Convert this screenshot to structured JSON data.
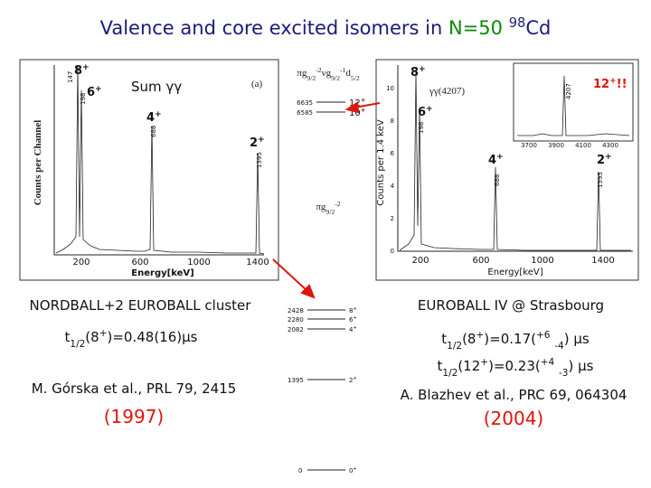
{
  "title": [
    {
      "text": "Valence and core excited isomers in "
    },
    {
      "text": "N=50",
      "color": "#0a8a0a"
    },
    {
      "text": " "
    },
    {
      "text": "98",
      "pos": "sup"
    },
    {
      "text": "Cd"
    }
  ],
  "left_spectrum": {
    "peak_8": [
      {
        "text": "8"
      },
      {
        "text": "+",
        "pos": "sup"
      }
    ],
    "peak_6": [
      {
        "text": "6"
      },
      {
        "text": "+",
        "pos": "sup"
      }
    ],
    "peak_4": [
      {
        "text": "4"
      },
      {
        "text": "+",
        "pos": "sup"
      }
    ],
    "peak_2": [
      {
        "text": "2"
      },
      {
        "text": "+",
        "pos": "sup"
      }
    ],
    "energy_147": "147",
    "energy_198": "198",
    "energy_688": "688",
    "energy_1395": "1395",
    "sum_label": "Sum γγ",
    "panel_label": "(a)",
    "x_ticks": [
      "200",
      "600",
      "1000",
      "1400"
    ],
    "x_label": "Energy[keV]",
    "y_label": "Counts per Channel"
  },
  "level_scheme": {
    "upper_config": [
      {
        "text": "πg"
      },
      {
        "text": "9/2",
        "pos": "sub"
      },
      {
        "text": "-2",
        "pos": "sup"
      },
      {
        "text": "νg"
      },
      {
        "text": "9/2",
        "pos": "sub"
      },
      {
        "text": "-1",
        "pos": "sup"
      },
      {
        "text": "d"
      },
      {
        "text": "5/2",
        "pos": "sub"
      }
    ],
    "upper_levels": [
      {
        "energy": "6635",
        "spin": [
          {
            "text": "12"
          },
          {
            "text": "+",
            "pos": "sup"
          }
        ]
      },
      {
        "energy": "6585",
        "spin": [
          {
            "text": "10"
          },
          {
            "text": "+",
            "pos": "sup"
          }
        ]
      }
    ],
    "lower_config": [
      {
        "text": "πg"
      },
      {
        "text": "9/2",
        "pos": "sub"
      },
      {
        "text": "-2",
        "pos": "sup"
      }
    ],
    "lower_levels": [
      {
        "energy": "2428",
        "spin": [
          {
            "text": "8"
          },
          {
            "text": "+",
            "pos": "sup"
          }
        ]
      },
      {
        "energy": "2280",
        "spin": [
          {
            "text": "6"
          },
          {
            "text": "+",
            "pos": "sup"
          }
        ]
      },
      {
        "energy": "2082",
        "spin": [
          {
            "text": "4"
          },
          {
            "text": "+",
            "pos": "sup"
          }
        ]
      },
      {
        "energy": "1395",
        "spin": [
          {
            "text": "2"
          },
          {
            "text": "+",
            "pos": "sup"
          }
        ]
      },
      {
        "energy": "0",
        "spin": [
          {
            "text": "0"
          },
          {
            "text": "+",
            "pos": "sup"
          }
        ]
      }
    ]
  },
  "right_spectrum": {
    "peak_8": [
      {
        "text": "8"
      },
      {
        "text": "+",
        "pos": "sup"
      }
    ],
    "gate_label": "γγ(4207)",
    "peak_6": [
      {
        "text": "6"
      },
      {
        "text": "+",
        "pos": "sup"
      }
    ],
    "peak_12": [
      {
        "text": "12"
      },
      {
        "text": "+",
        "pos": "sup"
      },
      {
        "text": "!!"
      }
    ],
    "peak_4": [
      {
        "text": "4"
      },
      {
        "text": "+",
        "pos": "sup"
      }
    ],
    "peak_2": [
      {
        "text": "2"
      },
      {
        "text": "+",
        "pos": "sup"
      }
    ],
    "energy_198": "198",
    "energy_688": "688",
    "energy_1395": "1395",
    "energy_4207": "4207",
    "inset_x_ticks": [
      "3700",
      "3900",
      "4100",
      "4300"
    ],
    "x_ticks": [
      "200",
      "600",
      "1000",
      "1400"
    ],
    "y_ticks": [
      "0",
      "2",
      "4",
      "6",
      "8",
      "10"
    ],
    "x_label": "Energy[keV]",
    "y_label": "Counts per 1.4 keV"
  },
  "left_text": {
    "setup": "NORDBALL+2 EUROBALL cluster",
    "half_life": [
      {
        "text": "t"
      },
      {
        "text": "1/2",
        "pos": "sub"
      },
      {
        "text": "(8"
      },
      {
        "text": "+",
        "pos": "sup"
      },
      {
        "text": ")=0.48(16)μs"
      }
    ],
    "reference": "M. Górska et al., PRL 79, 2415",
    "year": "(1997)"
  },
  "right_text": {
    "setup": "EUROBALL IV @ Strasbourg",
    "half_life_8": [
      {
        "text": "t"
      },
      {
        "text": "1/2",
        "pos": "sub"
      },
      {
        "text": "(8"
      },
      {
        "text": "+",
        "pos": "sup"
      },
      {
        "text": ")=0.17("
      },
      {
        "text": "+6",
        "pos": "sup"
      },
      {
        "text": " "
      },
      {
        "text": "-4",
        "pos": "sub"
      },
      {
        "text": ") μs"
      }
    ],
    "half_life_12": [
      {
        "text": "t"
      },
      {
        "text": "1/2",
        "pos": "sub"
      },
      {
        "text": "(12"
      },
      {
        "text": "+",
        "pos": "sup"
      },
      {
        "text": ")=0.23("
      },
      {
        "text": "+4",
        "pos": "sup"
      },
      {
        "text": " "
      },
      {
        "text": "-3",
        "pos": "sub"
      },
      {
        "text": ") μs"
      }
    ],
    "reference": "A. Blazhev et al., PRC 69, 064304",
    "year": "(2004)"
  }
}
